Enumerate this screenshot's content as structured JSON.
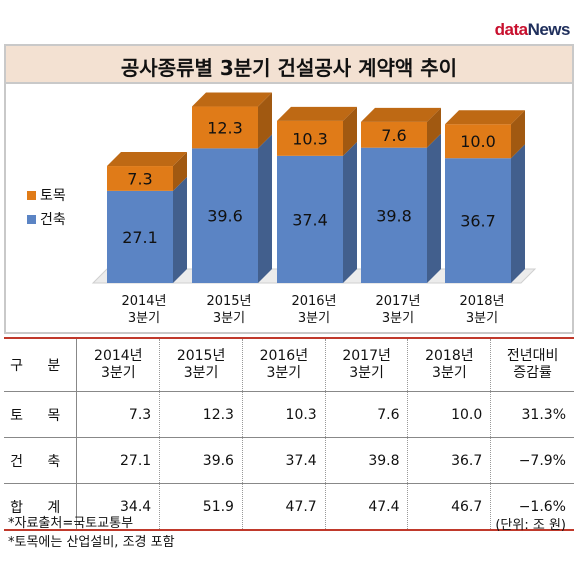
{
  "logo": {
    "part1": "data",
    "part2": "News"
  },
  "chart_data": {
    "type": "bar",
    "stacked": true,
    "title": "공사종류별 3분기 건설공사 계약액 추이",
    "categories": [
      [
        "2014년",
        "3분기"
      ],
      [
        "2015년",
        "3분기"
      ],
      [
        "2016년",
        "3분기"
      ],
      [
        "2017년",
        "3분기"
      ],
      [
        "2018년",
        "3분기"
      ]
    ],
    "series": [
      {
        "name": "건축",
        "color": "#5b84c4",
        "values": [
          27.1,
          39.6,
          37.4,
          39.8,
          36.7
        ]
      },
      {
        "name": "토목",
        "color": "#e07b18",
        "values": [
          7.3,
          12.3,
          10.3,
          7.6,
          10.0
        ]
      }
    ],
    "value_labels": {
      "건축": [
        "27.1",
        "39.6",
        "37.4",
        "39.8",
        "36.7"
      ],
      "토목": [
        "7.3",
        "12.3",
        "10.3",
        "7.6",
        "10.0"
      ]
    },
    "legend": [
      "토목",
      "건축"
    ],
    "legend_position": "left"
  },
  "table": {
    "header": [
      "구 분",
      [
        "2014년",
        "3분기"
      ],
      [
        "2015년",
        "3분기"
      ],
      [
        "2016년",
        "3분기"
      ],
      [
        "2017년",
        "3분기"
      ],
      [
        "2018년",
        "3분기"
      ],
      [
        "전년대비",
        "증감률"
      ]
    ],
    "rows": [
      {
        "label": "토 목",
        "cells": [
          "7.3",
          "12.3",
          "10.3",
          "7.6",
          "10.0",
          "31.3%"
        ]
      },
      {
        "label": "건 축",
        "cells": [
          "27.1",
          "39.6",
          "37.4",
          "39.8",
          "36.7",
          "−7.9%"
        ]
      },
      {
        "label": "합 계",
        "cells": [
          "34.4",
          "51.9",
          "47.7",
          "47.4",
          "46.7",
          "−1.6%"
        ]
      }
    ]
  },
  "footnotes": [
    "*자료출처=국토교통부",
    "*토목에는 산업설비, 조경 포함"
  ],
  "unit_note": "(단위: 조 원)"
}
